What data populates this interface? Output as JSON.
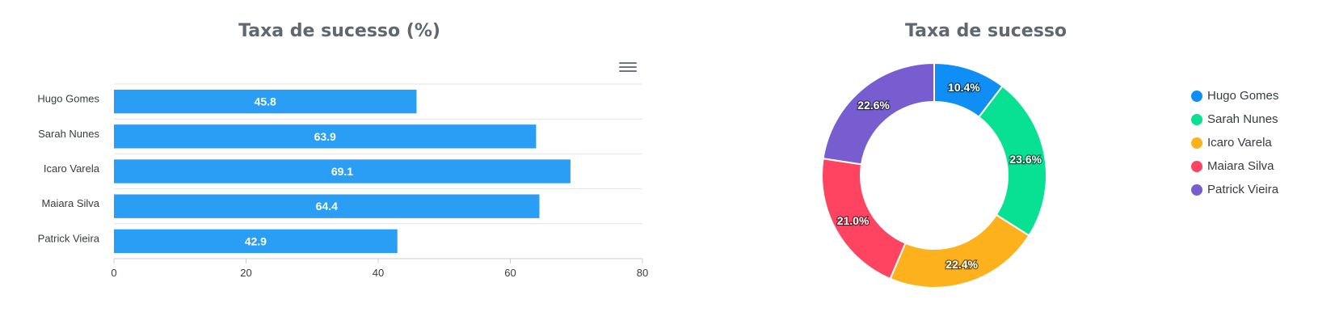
{
  "chart_data": [
    {
      "type": "bar",
      "orientation": "horizontal",
      "title": "Taxa de sucesso (%)",
      "categories": [
        "Hugo Gomes",
        "Sarah Nunes",
        "Icaro Varela",
        "Maiara Silva",
        "Patrick Vieira"
      ],
      "values": [
        45.8,
        63.9,
        69.1,
        64.4,
        42.9
      ],
      "xlim": [
        0,
        80
      ],
      "x_ticks": [
        "0",
        "20",
        "40",
        "60",
        "80"
      ],
      "color": "#2a9df4",
      "grid": true,
      "data_labels": true
    },
    {
      "type": "pie",
      "variant": "donut",
      "title": "Taxa de sucesso",
      "labels": [
        "Hugo Gomes",
        "Sarah Nunes",
        "Icaro Varela",
        "Maiara Silva",
        "Patrick Vieira"
      ],
      "values": [
        10.4,
        23.6,
        22.4,
        21.0,
        22.6
      ],
      "value_labels": [
        "10.4%",
        "23.6%",
        "22.4%",
        "21.0%",
        "22.6%"
      ],
      "colors": [
        "#0f8ff5",
        "#08e094",
        "#fdb11d",
        "#ff4461",
        "#775dd0"
      ],
      "legend": "right"
    }
  ],
  "toolbar": {
    "menu_icon": "hamburger-menu-icon"
  }
}
